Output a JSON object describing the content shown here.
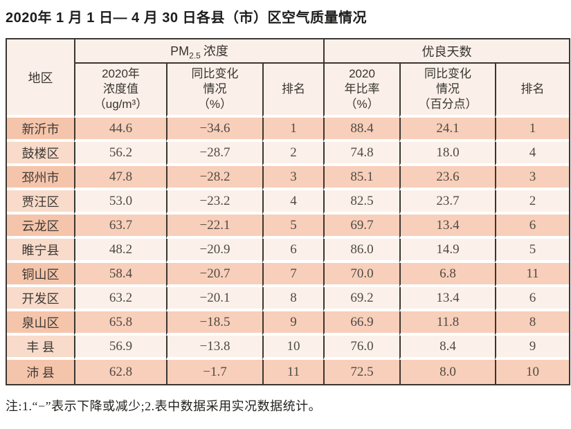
{
  "title": "2020年 1 月 1 日— 4 月 30 日各县（市）区空气质量情况",
  "table": {
    "header": {
      "region": "地区",
      "pm_group": {
        "base": "PM",
        "sub": "2.5",
        "rest": "浓度"
      },
      "good_days_group": "优良天数",
      "sub": {
        "pm_value": "2020年\n浓度值\n（ug/m³）",
        "pm_change": "同比变化\n情况\n（%）",
        "pm_rank": "排名",
        "ratio": "2020\n年比率\n（%）",
        "ratio_change": "同比变化\n情况\n（百分点）",
        "ratio_rank": "排名"
      }
    },
    "column_names": [
      "region-cell",
      "pm-value-cell",
      "pm-change-cell",
      "pm-rank-cell",
      "ratio-cell",
      "ratio-change-cell",
      "ratio-rank-cell"
    ],
    "rows": [
      [
        "新沂市",
        "44.6",
        "−34.6",
        "1",
        "88.4",
        "24.1",
        "1"
      ],
      [
        "鼓楼区",
        "56.2",
        "−28.7",
        "2",
        "74.8",
        "18.0",
        "4"
      ],
      [
        "邳州市",
        "47.8",
        "−28.2",
        "3",
        "85.1",
        "23.6",
        "3"
      ],
      [
        "贾汪区",
        "53.0",
        "−23.2",
        "4",
        "82.5",
        "23.7",
        "2"
      ],
      [
        "云龙区",
        "63.7",
        "−22.1",
        "5",
        "69.7",
        "13.4",
        "6"
      ],
      [
        "睢宁县",
        "48.2",
        "−20.9",
        "6",
        "86.0",
        "14.9",
        "5"
      ],
      [
        "铜山区",
        "58.4",
        "−20.7",
        "7",
        "70.0",
        "6.8",
        "11"
      ],
      [
        "开发区",
        "63.2",
        "−20.1",
        "8",
        "69.2",
        "13.4",
        "6"
      ],
      [
        "泉山区",
        "65.8",
        "−18.5",
        "9",
        "66.9",
        "11.8",
        "8"
      ],
      [
        "丰 县",
        "56.9",
        "−13.8",
        "10",
        "76.0",
        "8.4",
        "9"
      ],
      [
        "沛 县",
        "62.8",
        "−1.7",
        "11",
        "72.5",
        "8.0",
        "10"
      ]
    ]
  },
  "note": "注:1.“−”表示下降或减少;2.表中数据采用实况数据统计。",
  "colors": {
    "border_dark": "#3a3530",
    "header_bg": "#fbf0e9",
    "row_salmon": "#f8cfba",
    "row_light": "#fbf1ea",
    "region_salmon": "#f5c5ab",
    "region_light": "#f8dbca",
    "num_text": "#4f4a45"
  }
}
